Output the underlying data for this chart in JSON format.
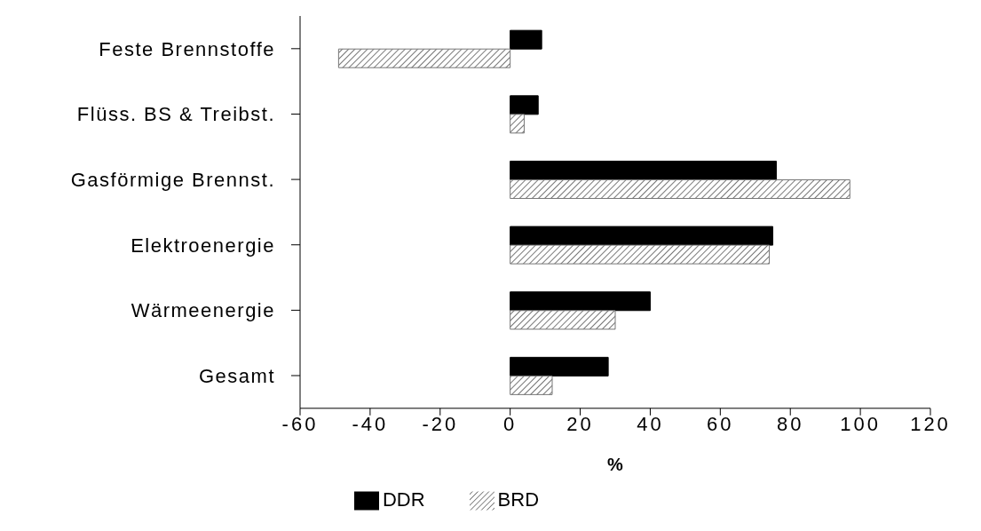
{
  "chart_data": {
    "type": "bar",
    "orientation": "horizontal",
    "xlabel": "%",
    "categories": [
      "Feste Brennstoffe",
      "Flüss. BS & Treibst.",
      "Gasförmige Brennst.",
      "Elektroenergie",
      "Wärmeenergie",
      "Gesamt"
    ],
    "series": [
      {
        "name": "DDR",
        "color": "#000000",
        "values": [
          9,
          8,
          76,
          75,
          40,
          28
        ]
      },
      {
        "name": "BRD",
        "color": "#777777",
        "values": [
          -49,
          4,
          97,
          74,
          30,
          12
        ]
      }
    ],
    "xlim": [
      -60,
      120
    ],
    "xticks": [
      -60,
      -40,
      -20,
      0,
      20,
      40,
      60,
      80,
      100,
      120
    ],
    "grid": false,
    "legend": "bottom"
  }
}
